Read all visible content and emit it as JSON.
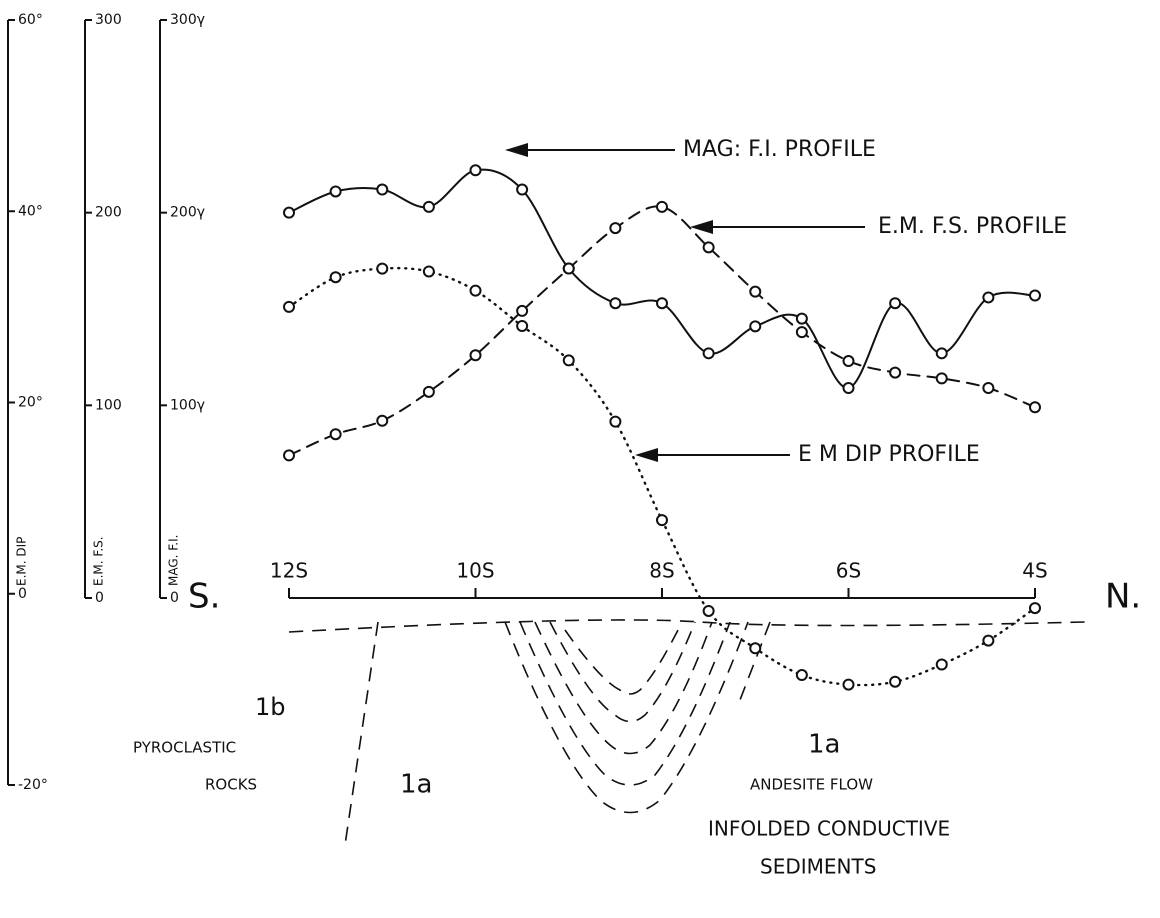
{
  "chart_data": {
    "type": "line",
    "x": [
      12,
      11.5,
      11,
      10.5,
      10,
      9.5,
      9,
      8.5,
      8,
      7.5,
      7,
      6.5,
      6,
      5.5,
      5,
      4.5,
      4
    ],
    "xlim": [
      12,
      4
    ],
    "xticks": [
      {
        "value": 12,
        "label": "12S"
      },
      {
        "value": 10,
        "label": "10S"
      },
      {
        "value": 8,
        "label": "8S"
      },
      {
        "value": 6,
        "label": "6S"
      },
      {
        "value": 4,
        "label": "4S"
      }
    ],
    "x_ends": [
      "S.",
      "N."
    ],
    "axes": [
      {
        "label": "E.M. DIP",
        "lim": [
          -20,
          60
        ],
        "ticks": [
          {
            "value": 60,
            "label": "60°"
          },
          {
            "value": 40,
            "label": "40°"
          },
          {
            "value": 20,
            "label": "20°"
          },
          0,
          {
            "value": -20,
            "label": "-20°"
          }
        ]
      },
      {
        "label": "E.M. F.S.",
        "lim": [
          0,
          300
        ],
        "ticks": [
          300,
          200,
          100,
          0
        ]
      },
      {
        "label": "MAG. F.I.",
        "lim": [
          0,
          300
        ],
        "ticks": [
          {
            "value": 300,
            "label": "300γ"
          },
          {
            "value": 200,
            "label": "200γ"
          },
          {
            "value": 100,
            "label": "100γ"
          },
          0
        ]
      }
    ],
    "series": [
      {
        "name": "MAG: F.I. PROFILE",
        "axis": 2,
        "style": "solid",
        "color": "#111111",
        "values": [
          200,
          211,
          212,
          203,
          222,
          212,
          171,
          153,
          153,
          127,
          141,
          145,
          109,
          153,
          127,
          156,
          157
        ]
      },
      {
        "name": "E.M. F.S. PROFILE",
        "axis": 1,
        "style": "dashed",
        "color": "#111111",
        "values": [
          74,
          85,
          92,
          107,
          126,
          149,
          171,
          192,
          203,
          182,
          159,
          138,
          123,
          117,
          114,
          109,
          99
        ]
      },
      {
        "name": "E M DIP PROFILE",
        "axis": 0,
        "style": "dotted",
        "color": "#111111",
        "values": [
          30,
          33.1,
          34,
          33.7,
          31.7,
          28,
          24.4,
          18,
          7.7,
          -1.8,
          -5.7,
          -8.5,
          -9.5,
          -9.2,
          -7.4,
          -4.9,
          -1.5
        ]
      }
    ],
    "geology": [
      "1b",
      "PYROCLASTIC",
      "ROCKS",
      "1a",
      "1a",
      "ANDESITE FLOW",
      "INFOLDED CONDUCTIVE",
      "SEDIMENTS"
    ]
  }
}
